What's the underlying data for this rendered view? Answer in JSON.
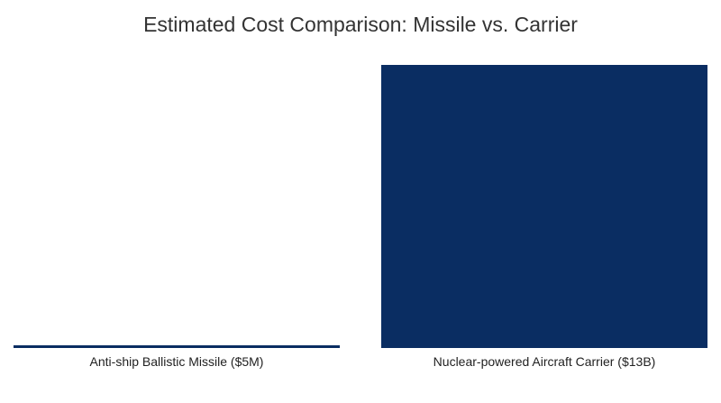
{
  "chart_data": {
    "type": "bar",
    "title": "Estimated Cost Comparison: Missile vs. Carrier",
    "categories": [
      "Anti-ship Ballistic Missile ($5M)",
      "Nuclear-powered Aircraft Carrier ($13B)"
    ],
    "values": [
      5000000,
      13000000000
    ],
    "value_unit": "USD",
    "bar_color": "#0a2d62",
    "xlabel": "",
    "ylabel": "",
    "ylim": [
      0,
      13000000000
    ],
    "grid": false,
    "legend": "none"
  }
}
